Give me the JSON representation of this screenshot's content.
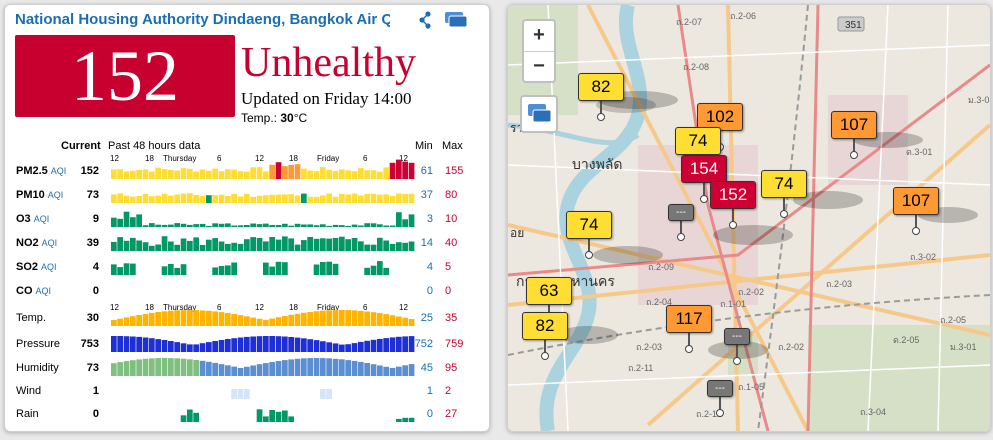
{
  "station": {
    "title": "National Housing Authority Dindaeng, Bangkok Air Quality",
    "aqi": "152",
    "level": "Unhealthy",
    "updated": "Updated on Friday 14:00",
    "temp_label": "Temp.:",
    "temp_value": "30",
    "temp_unit": "°C",
    "aqi_color": "#c7002f"
  },
  "table": {
    "col_current": "Current",
    "col_past": "Past 48 hours data",
    "col_min": "Min",
    "col_max": "Max",
    "time_labels": [
      "12",
      "18",
      "Thursday",
      "6",
      "12",
      "18",
      "Friday",
      "6",
      "12"
    ],
    "rows": [
      {
        "name": "PM2.5",
        "unit": "AQI",
        "current": "152",
        "min": "61",
        "max": "155"
      },
      {
        "name": "PM10",
        "unit": "AQI",
        "current": "73",
        "min": "37",
        "max": "80"
      },
      {
        "name": "O3",
        "unit": "AQI",
        "current": "9",
        "min": "3",
        "max": "10"
      },
      {
        "name": "NO2",
        "unit": "AQI",
        "current": "39",
        "min": "14",
        "max": "40"
      },
      {
        "name": "SO2",
        "unit": "AQI",
        "current": "4",
        "min": "4",
        "max": "5"
      },
      {
        "name": "CO",
        "unit": "AQI",
        "current": "0",
        "min": "0",
        "max": "0"
      },
      {
        "name": "Temp.",
        "unit": "",
        "current": "30",
        "min": "25",
        "max": "35"
      },
      {
        "name": "Pressure",
        "unit": "",
        "current": "753",
        "min": "752",
        "max": "759"
      },
      {
        "name": "Humidity",
        "unit": "",
        "current": "73",
        "min": "45",
        "max": "95"
      },
      {
        "name": "Wind",
        "unit": "",
        "current": "1",
        "min": "1",
        "max": "2"
      },
      {
        "name": "Rain",
        "unit": "",
        "current": "0",
        "min": "0",
        "max": "27"
      }
    ]
  },
  "map": {
    "zoom_in": "+",
    "zoom_out": "−",
    "markers": [
      "82",
      "102",
      "74",
      "154",
      "152",
      "74",
      "107",
      "107",
      "74",
      "63",
      "82",
      "117",
      "---",
      "---",
      "---"
    ],
    "place_labels": [
      "บางพลัด",
      "กรุงเทพมหานคร",
      "351",
      "รวย",
      "อย"
    ]
  },
  "colors": {
    "good": "#009966",
    "moderate": "#ffde33",
    "usg": "#ff9933",
    "unhealthy": "#cc0033",
    "temp": "#ffb400",
    "pressure": "#1f2fd6",
    "humidity": "#5b8fd1",
    "wind": "#d6e4f7",
    "link": "#1a6fb3"
  }
}
